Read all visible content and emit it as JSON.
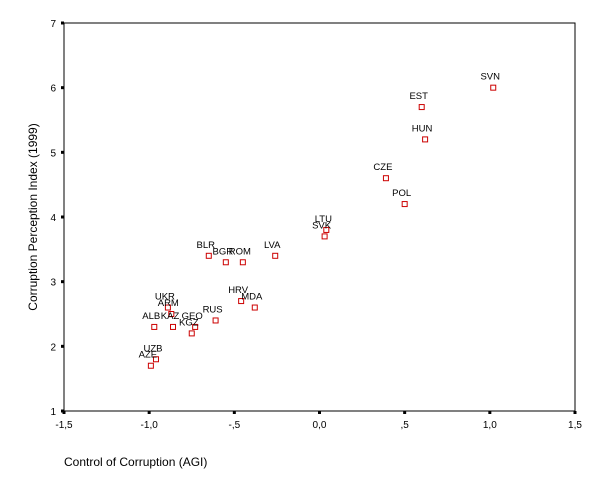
{
  "chart_data": {
    "type": "scatter",
    "title": "",
    "xlabel": "Control of Corruption (AGI)",
    "ylabel": "Corruption Perception Index (1999)",
    "xlim": [
      -1.5,
      1.5
    ],
    "ylim": [
      1,
      7
    ],
    "xticks": [
      -1.5,
      -1.0,
      -0.5,
      0.0,
      0.5,
      1.0,
      1.5
    ],
    "xtick_labels": [
      "-1,5",
      "-1,0",
      "-,5",
      "0,0",
      ",5",
      "1,0",
      "1,5"
    ],
    "yticks": [
      1,
      2,
      3,
      4,
      5,
      6,
      7
    ],
    "ytick_labels": [
      "1",
      "2",
      "3",
      "4",
      "5",
      "6",
      "7"
    ],
    "grid": false,
    "marker_color": "#cc0000",
    "points": [
      {
        "label": "SVN",
        "x": 1.02,
        "y": 6.0
      },
      {
        "label": "EST",
        "x": 0.6,
        "y": 5.7
      },
      {
        "label": "HUN",
        "x": 0.62,
        "y": 5.2
      },
      {
        "label": "CZE",
        "x": 0.39,
        "y": 4.6
      },
      {
        "label": "POL",
        "x": 0.5,
        "y": 4.2
      },
      {
        "label": "LTU",
        "x": 0.04,
        "y": 3.8
      },
      {
        "label": "SVK",
        "x": 0.03,
        "y": 3.7
      },
      {
        "label": "LVA",
        "x": -0.26,
        "y": 3.4
      },
      {
        "label": "BLR",
        "x": -0.65,
        "y": 3.4
      },
      {
        "label": "BGR",
        "x": -0.55,
        "y": 3.3
      },
      {
        "label": "ROM",
        "x": -0.45,
        "y": 3.3
      },
      {
        "label": "HRV",
        "x": -0.46,
        "y": 2.7
      },
      {
        "label": "MDA",
        "x": -0.38,
        "y": 2.6
      },
      {
        "label": "UKR",
        "x": -0.89,
        "y": 2.6
      },
      {
        "label": "ARM",
        "x": -0.87,
        "y": 2.5
      },
      {
        "label": "RUS",
        "x": -0.61,
        "y": 2.4
      },
      {
        "label": "ALB",
        "x": -0.97,
        "y": 2.3
      },
      {
        "label": "KAZ",
        "x": -0.86,
        "y": 2.3
      },
      {
        "label": "GEO",
        "x": -0.73,
        "y": 2.3
      },
      {
        "label": "KGZ",
        "x": -0.75,
        "y": 2.2
      },
      {
        "label": "UZB",
        "x": -0.96,
        "y": 1.8
      },
      {
        "label": "AZE",
        "x": -0.99,
        "y": 1.7
      }
    ]
  }
}
